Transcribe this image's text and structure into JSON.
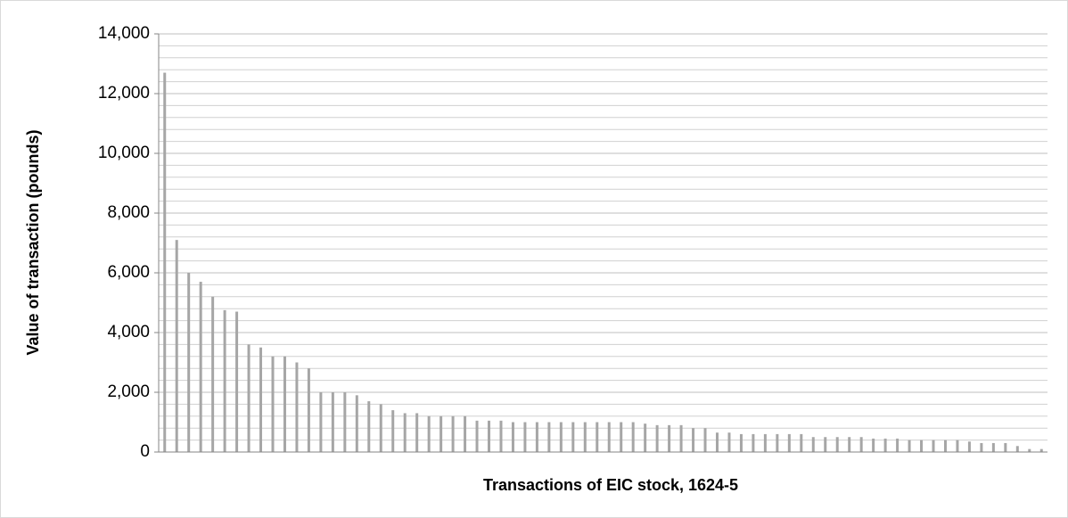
{
  "chart_data": {
    "type": "bar",
    "x_label": "Transactions of EIC stock, 1624-5",
    "y_label": "Value of transaction (pounds)",
    "categories": [
      null,
      null,
      null,
      null,
      null,
      null,
      null,
      null,
      null,
      null,
      null,
      null,
      null,
      null,
      null,
      null,
      null,
      null,
      null,
      null,
      null,
      null,
      null,
      null,
      null,
      null,
      null,
      null,
      null,
      null,
      null,
      null,
      null,
      null,
      null,
      null,
      null,
      null,
      null,
      null,
      null,
      null,
      null,
      null,
      null,
      null,
      null,
      null,
      null,
      null,
      null,
      null,
      null,
      null,
      null,
      null,
      null,
      null,
      null,
      null,
      null,
      null,
      null,
      null,
      null,
      null,
      null,
      null,
      null,
      null,
      null,
      null,
      null,
      null
    ],
    "values": [
      12700,
      7100,
      6000,
      5700,
      5200,
      4750,
      4700,
      3600,
      3500,
      3200,
      3200,
      3000,
      2800,
      2000,
      2000,
      2000,
      1900,
      1700,
      1600,
      1400,
      1300,
      1300,
      1200,
      1200,
      1200,
      1200,
      1050,
      1050,
      1050,
      1000,
      1000,
      1000,
      1000,
      1000,
      1000,
      1000,
      1000,
      1000,
      1000,
      1000,
      950,
      900,
      900,
      900,
      800,
      800,
      650,
      650,
      600,
      600,
      600,
      600,
      600,
      600,
      500,
      500,
      500,
      500,
      500,
      450,
      450,
      450,
      400,
      400,
      400,
      400,
      400,
      350,
      300,
      300,
      300,
      200,
      100,
      100
    ],
    "color": "#a6a6a6",
    "ylim": [
      0,
      14000
    ],
    "yticks": [
      {
        "value": 0,
        "label": "0"
      },
      {
        "value": 2000,
        "label": "2,000"
      },
      {
        "value": 4000,
        "label": "4,000"
      },
      {
        "value": 6000,
        "label": "6,000"
      },
      {
        "value": 8000,
        "label": "8,000"
      },
      {
        "value": 10000,
        "label": "10,000"
      },
      {
        "value": 12000,
        "label": "12,000"
      },
      {
        "value": 14000,
        "label": "14,000"
      }
    ],
    "grid": true,
    "minor_grid": true
  }
}
